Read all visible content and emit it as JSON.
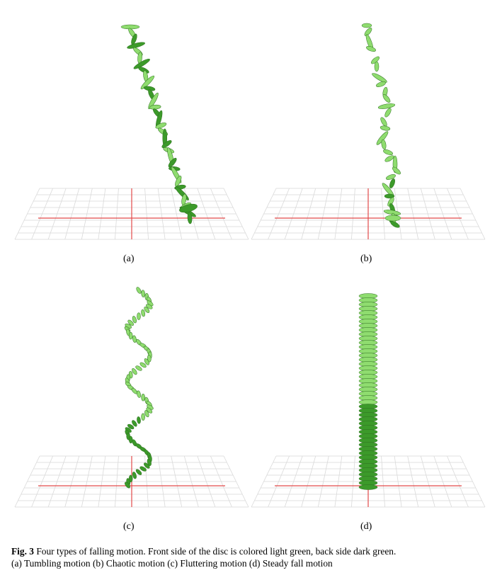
{
  "panels": [
    {
      "label": "(a)",
      "motion": "Tumbling motion"
    },
    {
      "label": "(b)",
      "motion": "Chaotic motion"
    },
    {
      "label": "(c)",
      "motion": "Fluttering motion"
    },
    {
      "label": "(d)",
      "motion": "Steady fall motion"
    }
  ],
  "caption": {
    "fig_num": "Fig. 3",
    "text": " Four types of falling motion. Front side of the disc is colored light green, back side dark green.",
    "subcaption": "(a) Tumbling motion (b) Chaotic motion (c) Fluttering motion (d) Steady fall motion"
  },
  "colors": {
    "front_side": "#8fdc6f",
    "back_side": "#3c9a2a",
    "grid": "#d9d9d9",
    "axis": "#e24a4a"
  }
}
